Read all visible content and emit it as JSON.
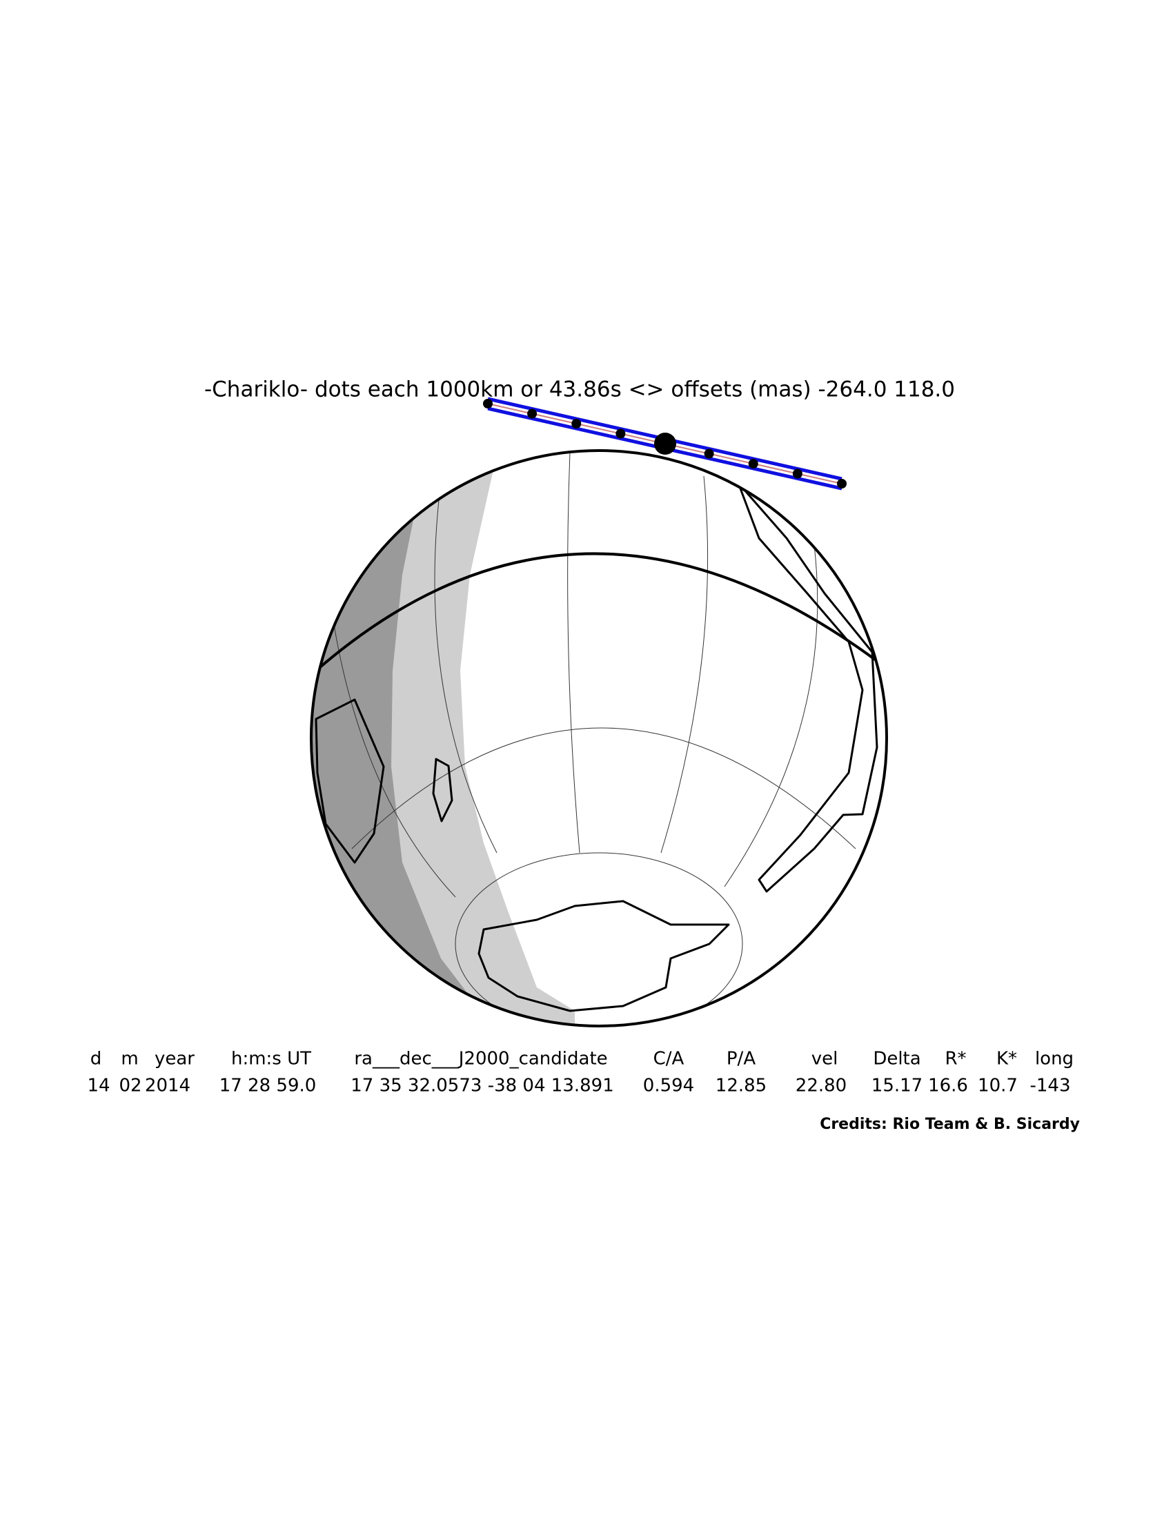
{
  "title": "-Chariklo- dots each 1000km or 43.86s <> offsets (mas) -264.0  118.0",
  "table": {
    "headers": [
      "d",
      "m",
      "year",
      "h:m:s UT",
      "ra___dec___J2000_candidate",
      "C/A",
      "P/A",
      "vel",
      "Delta",
      "R*",
      "K*",
      "long"
    ],
    "values": [
      "14",
      "02",
      "2014",
      "17 28 59.0",
      "17 35 32.0573 -38 04 13.891",
      "0.594",
      "12.85",
      "22.80",
      "15.17",
      "16.6",
      "10.7",
      "-143"
    ]
  },
  "credits": "Credits: Rio Team & B. Sicardy"
}
